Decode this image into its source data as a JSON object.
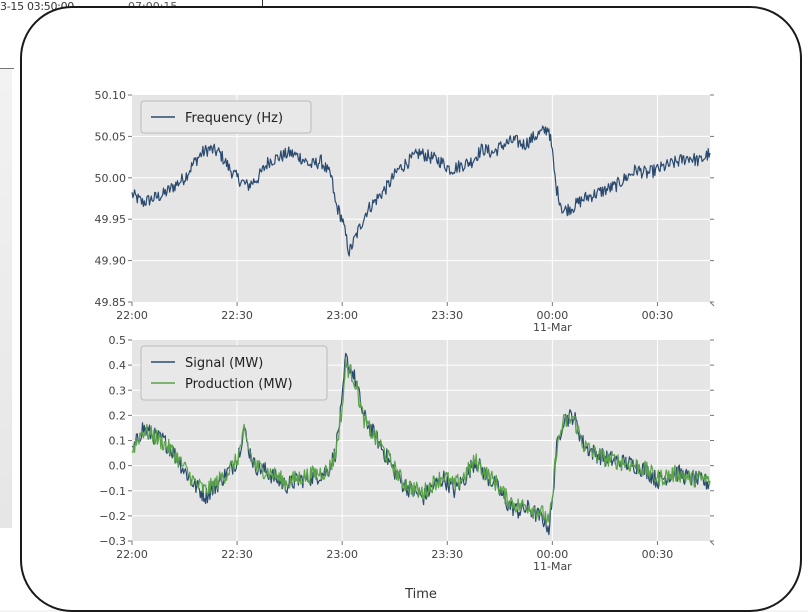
{
  "background": {
    "timestamp_text": "3-15 03:50:00",
    "timestamp_text2": "07:00:15"
  },
  "colors": {
    "panel_bg": "#e5e5e5",
    "grid": "#ffffff",
    "frequency": "#2b4a6f",
    "signal": "#2b4a6f",
    "production": "#5aa34a"
  },
  "chart_data": [
    {
      "type": "line",
      "title": "",
      "xlabel": "",
      "ylabel": "",
      "xlim": [
        "22:00",
        "00:45"
      ],
      "ylim": [
        49.85,
        50.1
      ],
      "yticks": [
        "49.85",
        "49.90",
        "49.95",
        "50.00",
        "50.05",
        "50.10"
      ],
      "xticks": [
        {
          "label": "22:00",
          "sub": "",
          "minutes": 0
        },
        {
          "label": "22:30",
          "sub": "",
          "minutes": 30
        },
        {
          "label": "23:00",
          "sub": "",
          "minutes": 60
        },
        {
          "label": "23:30",
          "sub": "",
          "minutes": 90
        },
        {
          "label": "00:00",
          "sub": "11-Mar",
          "minutes": 120
        },
        {
          "label": "00:30",
          "sub": "",
          "minutes": 150
        }
      ],
      "grid": true,
      "legend_position": "top-left",
      "series": [
        {
          "name": "Frequency (Hz)",
          "x_minutes": [
            0,
            3,
            6,
            9,
            12,
            15,
            18,
            20,
            22,
            25,
            28,
            30,
            33,
            36,
            39,
            42,
            45,
            48,
            51,
            54,
            57,
            58,
            60,
            61,
            62,
            63,
            65,
            67,
            70,
            73,
            76,
            79,
            82,
            85,
            88,
            91,
            94,
            97,
            100,
            103,
            106,
            109,
            112,
            115,
            117,
            119,
            120,
            121,
            123,
            126,
            129,
            132,
            135,
            138,
            141,
            144,
            147,
            150,
            153,
            156,
            159,
            162,
            165
          ],
          "y": [
            49.98,
            49.97,
            49.975,
            49.98,
            49.99,
            50.0,
            50.02,
            50.03,
            50.035,
            50.03,
            50.01,
            50.0,
            49.99,
            50.0,
            50.02,
            50.025,
            50.03,
            50.025,
            50.015,
            50.02,
            50.0,
            49.97,
            49.95,
            49.93,
            49.91,
            49.92,
            49.94,
            49.96,
            49.975,
            49.99,
            50.01,
            50.02,
            50.03,
            50.025,
            50.02,
            50.01,
            50.015,
            50.02,
            50.035,
            50.03,
            50.04,
            50.045,
            50.04,
            50.05,
            50.055,
            50.06,
            50.03,
            49.99,
            49.96,
            49.965,
            49.975,
            49.98,
            49.985,
            49.99,
            50.0,
            50.01,
            50.005,
            50.01,
            50.015,
            50.02,
            50.025,
            50.02,
            50.03
          ]
        }
      ]
    },
    {
      "type": "line",
      "title": "",
      "xlabel": "Time",
      "ylabel": "",
      "xlim": [
        "22:00",
        "00:45"
      ],
      "ylim": [
        -0.3,
        0.5
      ],
      "yticks": [
        "−0.3",
        "−0.2",
        "−0.1",
        "0.0",
        "0.1",
        "0.2",
        "0.3",
        "0.4",
        "0.5"
      ],
      "xticks": [
        {
          "label": "22:00",
          "sub": "",
          "minutes": 0
        },
        {
          "label": "22:30",
          "sub": "",
          "minutes": 30
        },
        {
          "label": "23:00",
          "sub": "",
          "minutes": 60
        },
        {
          "label": "23:30",
          "sub": "",
          "minutes": 90
        },
        {
          "label": "00:00",
          "sub": "11-Mar",
          "minutes": 120
        },
        {
          "label": "00:30",
          "sub": "",
          "minutes": 150
        }
      ],
      "grid": true,
      "legend_position": "top-left",
      "series": [
        {
          "name": "Signal (MW)",
          "x_minutes": [
            0,
            3,
            6,
            9,
            12,
            15,
            18,
            21,
            24,
            27,
            30,
            32,
            33,
            35,
            38,
            41,
            44,
            47,
            50,
            53,
            56,
            58,
            60,
            61,
            62,
            63,
            64,
            66,
            68,
            71,
            74,
            77,
            80,
            83,
            86,
            89,
            92,
            95,
            98,
            101,
            104,
            107,
            110,
            113,
            116,
            118,
            119,
            120,
            121,
            123,
            126,
            129,
            132,
            135,
            138,
            141,
            144,
            147,
            150,
            153,
            156,
            159,
            162,
            165
          ],
          "y": [
            0.05,
            0.15,
            0.12,
            0.1,
            0.05,
            -0.02,
            -0.08,
            -0.12,
            -0.08,
            -0.03,
            0.02,
            0.15,
            0.08,
            0.0,
            -0.02,
            -0.05,
            -0.08,
            -0.06,
            -0.05,
            -0.04,
            -0.02,
            0.05,
            0.25,
            0.43,
            0.39,
            0.37,
            0.33,
            0.2,
            0.15,
            0.08,
            0.0,
            -0.07,
            -0.1,
            -0.13,
            -0.08,
            -0.05,
            -0.1,
            -0.05,
            0.02,
            -0.04,
            -0.08,
            -0.15,
            -0.18,
            -0.17,
            -0.2,
            -0.22,
            -0.25,
            -0.15,
            0.05,
            0.18,
            0.2,
            0.08,
            0.05,
            0.03,
            0.02,
            0.01,
            0.0,
            -0.02,
            -0.06,
            -0.04,
            -0.03,
            -0.05,
            -0.06,
            -0.07
          ]
        },
        {
          "name": "Production (MW)",
          "x_minutes": [
            0,
            3,
            6,
            9,
            12,
            15,
            18,
            21,
            24,
            27,
            30,
            32,
            33,
            35,
            38,
            41,
            44,
            47,
            50,
            53,
            56,
            58,
            60,
            61,
            62,
            63,
            64,
            66,
            68,
            71,
            74,
            77,
            80,
            83,
            86,
            89,
            92,
            95,
            98,
            101,
            104,
            107,
            110,
            113,
            116,
            118,
            119,
            120,
            121,
            123,
            126,
            129,
            132,
            135,
            138,
            141,
            144,
            147,
            150,
            153,
            156,
            159,
            162,
            165
          ],
          "y": [
            0.06,
            0.14,
            0.12,
            0.09,
            0.05,
            -0.01,
            -0.07,
            -0.1,
            -0.07,
            -0.03,
            0.02,
            0.13,
            0.08,
            0.0,
            -0.02,
            -0.04,
            -0.07,
            -0.05,
            -0.04,
            -0.03,
            -0.02,
            0.04,
            0.23,
            0.4,
            0.38,
            0.36,
            0.32,
            0.19,
            0.14,
            0.08,
            0.01,
            -0.06,
            -0.09,
            -0.11,
            -0.07,
            -0.04,
            -0.08,
            -0.04,
            0.02,
            -0.03,
            -0.07,
            -0.13,
            -0.16,
            -0.16,
            -0.18,
            -0.2,
            -0.23,
            -0.14,
            0.05,
            0.17,
            0.19,
            0.08,
            0.05,
            0.03,
            0.02,
            0.01,
            0.0,
            -0.02,
            -0.05,
            -0.04,
            -0.03,
            -0.05,
            -0.05,
            -0.06
          ]
        }
      ]
    }
  ]
}
